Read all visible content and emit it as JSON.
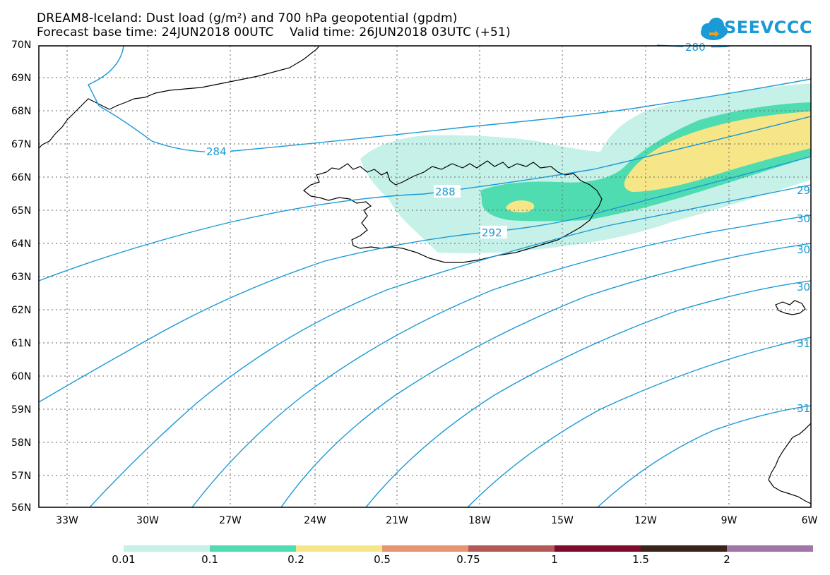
{
  "header": {
    "title_line1": "DREAM8-Iceland: Dust load (g/m²) and 700 hPa geopotential (gpdm)",
    "title_line2": "Forecast base time: 24JUN2018 00UTC    Valid time: 26JUN2018 03UTC (+51)"
  },
  "logo": {
    "text": "SEEVCCC",
    "icon": "cloud-icon",
    "color": "#1a9ad6"
  },
  "map": {
    "lon_ticks": [
      "33W",
      "30W",
      "27W",
      "24W",
      "21W",
      "18W",
      "15W",
      "12W",
      "9W",
      "6W"
    ],
    "lat_ticks": [
      "70N",
      "69N",
      "68N",
      "67N",
      "66N",
      "65N",
      "64N",
      "63N",
      "62N",
      "61N",
      "60N",
      "59N",
      "58N",
      "57N",
      "56N"
    ],
    "contour_color": "#1a9ad6",
    "contour_labels": [
      "280",
      "284",
      "288",
      "292",
      "29",
      "30",
      "30",
      "30",
      "31",
      "31"
    ],
    "coastline_color": "#000000"
  },
  "colorbar": {
    "labels": [
      "0.01",
      "0.1",
      "0.2",
      "0.5",
      "0.75",
      "1",
      "1.5",
      "2"
    ],
    "colors": [
      "#c5f1e8",
      "#4fdcb0",
      "#f6e687",
      "#e69570",
      "#b45a56",
      "#7e0c2a",
      "#3a2318",
      "#9f76a7"
    ]
  }
}
